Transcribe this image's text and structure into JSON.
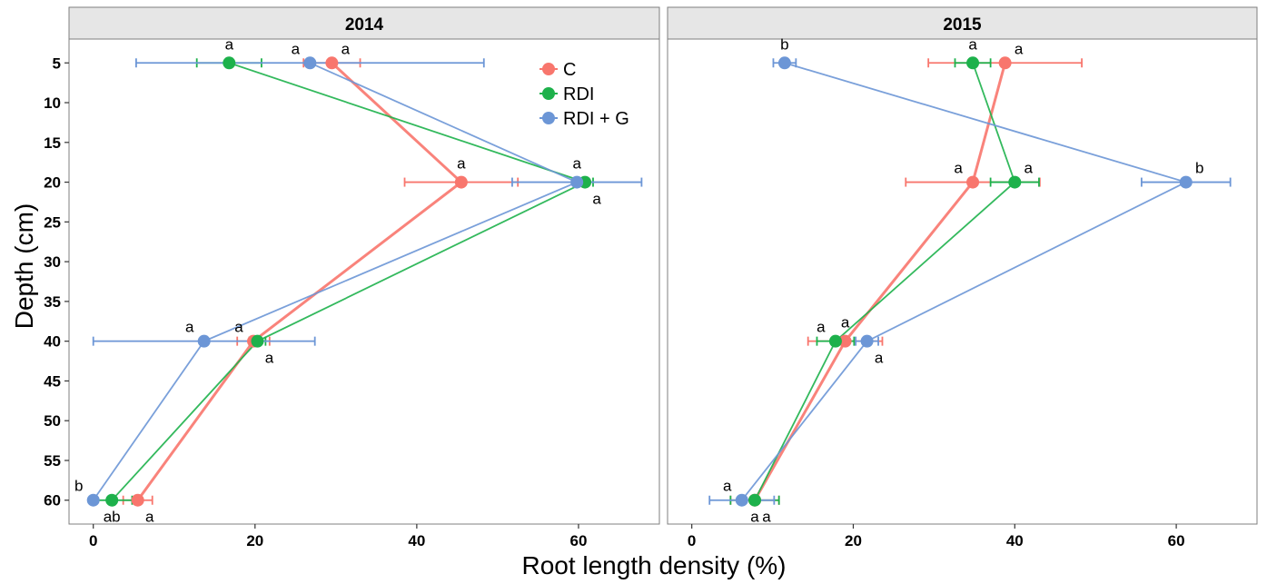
{
  "chart_data": {
    "type": "scatter",
    "xlabel": "Root length density (%)",
    "ylabel": "Depth (cm)",
    "xlim": [
      -3,
      70
    ],
    "ylim": [
      2,
      63
    ],
    "y_reversed": true,
    "xticks": [
      0,
      20,
      40,
      60
    ],
    "yticks": [
      5,
      10,
      15,
      20,
      25,
      30,
      35,
      40,
      45,
      50,
      55,
      60
    ],
    "grid": false,
    "legend_position": "top-right",
    "series_meta": [
      {
        "name": "C",
        "color": "#F8766D"
      },
      {
        "name": "RDI",
        "color": "#1DB14B"
      },
      {
        "name": "RDI + G",
        "color": "#6C96D6"
      }
    ],
    "panels": [
      {
        "title": "2014",
        "series": [
          {
            "name": "C",
            "points": [
              {
                "depth": 5,
                "x": 29.5,
                "err": 3.5,
                "label": "a",
                "label_pos": "upper-right"
              },
              {
                "depth": 20,
                "x": 45.5,
                "err": 7,
                "label": "a",
                "label_pos": "upper"
              },
              {
                "depth": 40,
                "x": 19.8,
                "err": 2,
                "label": "a",
                "label_pos": "upper-left"
              },
              {
                "depth": 60,
                "x": 5.5,
                "err": 1.8,
                "label": "a",
                "label_pos": "lower-right"
              }
            ]
          },
          {
            "name": "RDI",
            "points": [
              {
                "depth": 5,
                "x": 16.8,
                "err": 4,
                "label": "a",
                "label_pos": "upper"
              },
              {
                "depth": 20,
                "x": 60.8,
                "err": 1,
                "label": "a",
                "label_pos": "lower-right"
              },
              {
                "depth": 40,
                "x": 20.3,
                "err": 1,
                "label": "a",
                "label_pos": "lower-right"
              },
              {
                "depth": 60,
                "x": 2.3,
                "err": 2.5,
                "label": "ab",
                "label_pos": "lower"
              }
            ]
          },
          {
            "name": "RDI + G",
            "points": [
              {
                "depth": 5,
                "x": 26.8,
                "err": 21.5,
                "label": "a",
                "label_pos": "upper-left"
              },
              {
                "depth": 20,
                "x": 59.8,
                "err": 8,
                "label": "a",
                "label_pos": "upper"
              },
              {
                "depth": 40,
                "x": 13.7,
                "err": 13.7,
                "label": "a",
                "label_pos": "upper-left"
              },
              {
                "depth": 60,
                "x": 0,
                "err": 0,
                "label": "b",
                "label_pos": "upper-left"
              }
            ]
          }
        ]
      },
      {
        "title": "2015",
        "series": [
          {
            "name": "C",
            "points": [
              {
                "depth": 5,
                "x": 38.8,
                "err": 9.5,
                "label": "a",
                "label_pos": "upper-right"
              },
              {
                "depth": 20,
                "x": 34.8,
                "err": 8.3,
                "label": "a",
                "label_pos": "upper-left"
              },
              {
                "depth": 40,
                "x": 19,
                "err": 4.6,
                "label": "a",
                "label_pos": "upper"
              },
              {
                "depth": 60,
                "x": 7.8,
                "err": 3,
                "label": "a",
                "label_pos": "lower-right"
              }
            ]
          },
          {
            "name": "RDI",
            "points": [
              {
                "depth": 5,
                "x": 34.8,
                "err": 2.2,
                "label": "a",
                "label_pos": "upper"
              },
              {
                "depth": 20,
                "x": 40,
                "err": 3,
                "label": "a",
                "label_pos": "upper-right"
              },
              {
                "depth": 40,
                "x": 17.8,
                "err": 2.3,
                "label": "a",
                "label_pos": "upper-left"
              },
              {
                "depth": 60,
                "x": 7.8,
                "err": 3,
                "label": "a",
                "label_pos": "lower"
              }
            ]
          },
          {
            "name": "RDI + G",
            "points": [
              {
                "depth": 5,
                "x": 11.5,
                "err": 1.4,
                "label": "b",
                "label_pos": "upper"
              },
              {
                "depth": 20,
                "x": 61.2,
                "err": 5.5,
                "label": "b",
                "label_pos": "upper-right"
              },
              {
                "depth": 40,
                "x": 21.7,
                "err": 1.4,
                "label": "a",
                "label_pos": "lower-right"
              },
              {
                "depth": 60,
                "x": 6.2,
                "err": 4,
                "label": "a",
                "label_pos": "upper-left"
              }
            ]
          }
        ]
      }
    ]
  }
}
